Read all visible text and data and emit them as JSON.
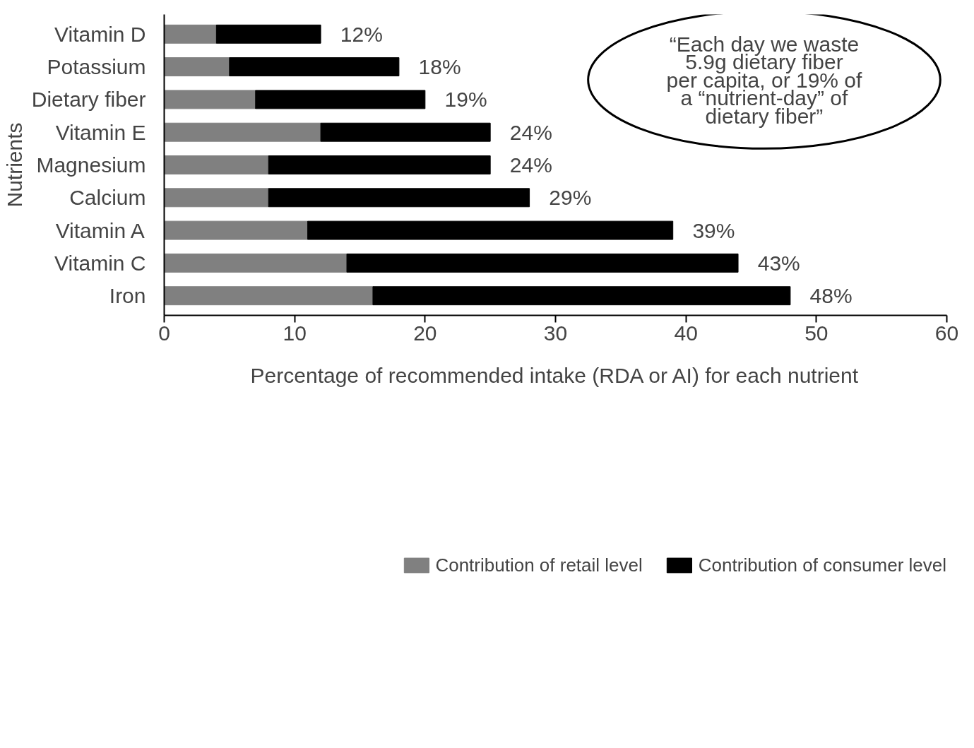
{
  "chart_data": {
    "type": "bar",
    "orientation": "horizontal",
    "stacked": true,
    "categories": [
      "Vitamin D",
      "Potassium",
      "Dietary fiber",
      "Vitamin E",
      "Magnesium",
      "Calcium",
      "Vitamin A",
      "Vitamin C",
      "Iron"
    ],
    "series": [
      {
        "name": "Contribution of retail level",
        "color": "#808080",
        "values": [
          4,
          5,
          7,
          12,
          8,
          8,
          11,
          14,
          16
        ]
      },
      {
        "name": "Contribution of consumer level",
        "color": "#000000",
        "values": [
          8,
          13,
          13,
          13,
          17,
          20,
          28,
          30,
          32
        ]
      }
    ],
    "totals": [
      "12%",
      "18%",
      "19%",
      "24%",
      "24%",
      "29%",
      "39%",
      "43%",
      "48%"
    ],
    "xlim": [
      0,
      60
    ],
    "xticks": [
      0,
      10,
      20,
      30,
      40,
      50,
      60
    ],
    "xlabel": "Percentage of recommended intake (RDA or AI) for each nutrient",
    "ylabel": "Nutrients",
    "annotations": [
      "“Each day we waste 5.9g dietary fiber per capita, or 19% of a “nutrient-day” of dietary fiber”"
    ],
    "legend": "bottom"
  }
}
